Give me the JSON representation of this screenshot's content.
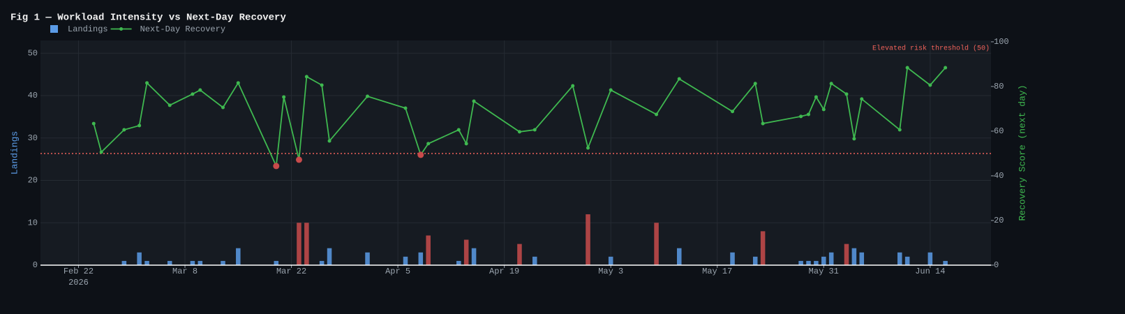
{
  "chart_data": {
    "type": "combo",
    "title": "Fig 1 — Workload Intensity vs Next-Day Recovery",
    "x": [
      "2026-02-24",
      "2026-02-25",
      "2026-02-28",
      "2026-03-02",
      "2026-03-03",
      "2026-03-06",
      "2026-03-09",
      "2026-03-10",
      "2026-03-13",
      "2026-03-15",
      "2026-03-20",
      "2026-03-21",
      "2026-03-23",
      "2026-03-24",
      "2026-03-26",
      "2026-03-27",
      "2026-04-01",
      "2026-04-06",
      "2026-04-08",
      "2026-04-09",
      "2026-04-13",
      "2026-04-14",
      "2026-04-15",
      "2026-04-21",
      "2026-04-23",
      "2026-04-28",
      "2026-04-30",
      "2026-05-03",
      "2026-05-09",
      "2026-05-12",
      "2026-05-19",
      "2026-05-22",
      "2026-05-23",
      "2026-05-28",
      "2026-05-29",
      "2026-05-30",
      "2026-05-31",
      "2026-06-01",
      "2026-06-03",
      "2026-06-04",
      "2026-06-05",
      "2026-06-10",
      "2026-06-11",
      "2026-06-14",
      "2026-06-16"
    ],
    "series": [
      {
        "name": "Landings",
        "type": "bar",
        "color": "#5b9be6",
        "highlight_color": "#c84b4b",
        "highlight_min": 5,
        "values": [
          0,
          0,
          1,
          3,
          1,
          1,
          1,
          1,
          1,
          4,
          1,
          0,
          10,
          10,
          1,
          4,
          3,
          2,
          3,
          7,
          1,
          6,
          4,
          5,
          2,
          0,
          12,
          2,
          10,
          4,
          3,
          2,
          8,
          1,
          1,
          1,
          2,
          3,
          5,
          4,
          3,
          3,
          2,
          3,
          1
        ]
      },
      {
        "name": "Next-Day Recovery",
        "type": "line",
        "axis": "y2",
        "color": "#3fb950",
        "highlight_color": "#c84b4b",
        "values": [
          63.4,
          50.6,
          60.6,
          62.5,
          81.6,
          71.6,
          76.6,
          78.4,
          70.6,
          81.6,
          44.4,
          75.3,
          47.2,
          84.4,
          80.6,
          55.6,
          75.6,
          70.3,
          49.4,
          54.4,
          60.6,
          54.4,
          73.4,
          59.7,
          60.6,
          80.3,
          52.5,
          78.4,
          67.5,
          83.4,
          68.8,
          81.3,
          63.4,
          66.6,
          67.5,
          75.3,
          69.7,
          81.3,
          76.6,
          56.6,
          74.4,
          60.6,
          88.4,
          80.6,
          88.4
        ]
      }
    ],
    "threshold": 50,
    "threshold_label": "Elevated risk threshold (50)",
    "threshold_color": "#f0625a",
    "xlim": [
      "2026-02-17",
      "2026-06-22"
    ],
    "xticks": [
      {
        "value": "2026-02-22",
        "label": "Feb 22"
      },
      {
        "value": "2026-03-08",
        "label": "Mar 8"
      },
      {
        "value": "2026-03-22",
        "label": "Mar 22"
      },
      {
        "value": "2026-04-05",
        "label": "Apr 5"
      },
      {
        "value": "2026-04-19",
        "label": "Apr 19"
      },
      {
        "value": "2026-05-03",
        "label": "May 3"
      },
      {
        "value": "2026-05-17",
        "label": "May 17"
      },
      {
        "value": "2026-05-31",
        "label": "May 31"
      },
      {
        "value": "2026-06-14",
        "label": "Jun 14"
      }
    ],
    "x_year": "2026",
    "ylabel": "Landings",
    "ylim": [
      0,
      53
    ],
    "yticks": [
      0,
      10,
      20,
      30,
      40,
      50
    ],
    "y2label": "Recovery Score (next day)",
    "y2lim": [
      0,
      100.6
    ],
    "y2ticks": [
      0,
      20,
      40,
      60,
      80,
      100
    ],
    "grid": true
  }
}
